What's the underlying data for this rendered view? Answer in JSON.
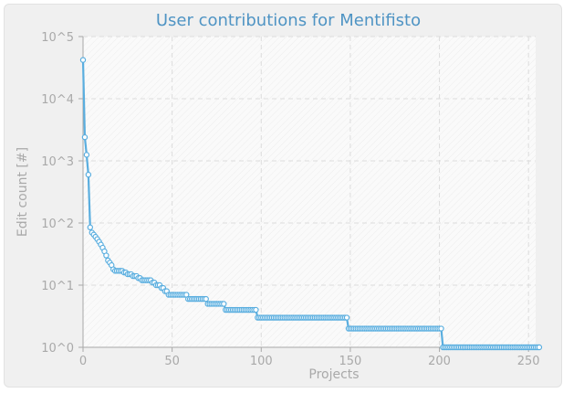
{
  "chart_data": {
    "type": "line",
    "title": "User contributions for Mentifisto",
    "xlabel": "Projects",
    "ylabel": "Edit count [#]",
    "yscale": "log",
    "xlim": [
      0,
      254
    ],
    "ylim": [
      1,
      100000
    ],
    "x_ticks": [
      0,
      50,
      100,
      150,
      200,
      250
    ],
    "y_ticks": [
      1,
      10,
      100,
      1000,
      10000,
      100000
    ],
    "y_tick_labels": [
      "10^0",
      "10^1",
      "10^2",
      "10^3",
      "10^4",
      "10^5"
    ],
    "grid": true,
    "series_color": "#5aaedf",
    "series": [
      {
        "x_start": 0,
        "values": [
          42000,
          2400,
          1250,
          600,
          85,
          70,
          65,
          60,
          55,
          50,
          45,
          40,
          35,
          30,
          25,
          23,
          21,
          18,
          17,
          17,
          17,
          17,
          17,
          16,
          16,
          15,
          15,
          15,
          14,
          14,
          14,
          13,
          13,
          12,
          12,
          12,
          12,
          12,
          12,
          11,
          11,
          10,
          10,
          10,
          9,
          9,
          8,
          8,
          7,
          7,
          7,
          7,
          7,
          7,
          7,
          7,
          7,
          7,
          7,
          6,
          6,
          6,
          6,
          6,
          6,
          6,
          6,
          6,
          6,
          6,
          5,
          5,
          5,
          5,
          5,
          5,
          5,
          5,
          5,
          5,
          4,
          4,
          4,
          4,
          4,
          4,
          4,
          4,
          4,
          4,
          4,
          4,
          4,
          4,
          4,
          4,
          4,
          4,
          3,
          3,
          3,
          3,
          3,
          3,
          3,
          3,
          3,
          3,
          3,
          3,
          3,
          3,
          3,
          3,
          3,
          3,
          3,
          3,
          3,
          3,
          3,
          3,
          3,
          3,
          3,
          3,
          3,
          3,
          3,
          3,
          3,
          3,
          3,
          3,
          3,
          3,
          3,
          3,
          3,
          3,
          3,
          3,
          3,
          3,
          3,
          3,
          3,
          3,
          3,
          2,
          2,
          2,
          2,
          2,
          2,
          2,
          2,
          2,
          2,
          2,
          2,
          2,
          2,
          2,
          2,
          2,
          2,
          2,
          2,
          2,
          2,
          2,
          2,
          2,
          2,
          2,
          2,
          2,
          2,
          2,
          2,
          2,
          2,
          2,
          2,
          2,
          2,
          2,
          2,
          2,
          2,
          2,
          2,
          2,
          2,
          2,
          2,
          2,
          2,
          2,
          2,
          2,
          1,
          1,
          1,
          1,
          1,
          1,
          1,
          1,
          1,
          1,
          1,
          1,
          1,
          1,
          1,
          1,
          1,
          1,
          1,
          1,
          1,
          1,
          1,
          1,
          1,
          1,
          1,
          1,
          1,
          1,
          1,
          1,
          1,
          1,
          1,
          1,
          1,
          1,
          1,
          1,
          1,
          1,
          1,
          1,
          1,
          1,
          1,
          1,
          1,
          1,
          1,
          1,
          1,
          1,
          1
        ]
      }
    ]
  }
}
